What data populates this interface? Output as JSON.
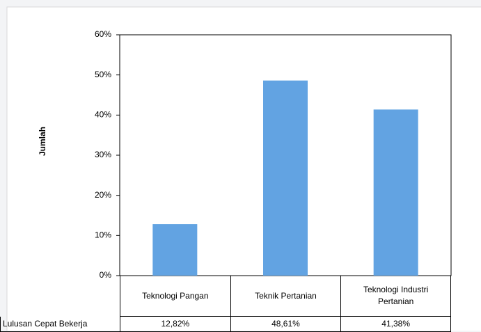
{
  "chart_data": {
    "type": "bar",
    "y_label": "Jumlah",
    "categories": [
      "Teknologi Pangan",
      "Teknik Pertanian",
      "Teknologi Industri Pertanian"
    ],
    "series": [
      {
        "name": "Lulusan Cepat Bekerja",
        "color": "#62a3e2",
        "values": [
          12.82,
          48.61,
          41.38
        ],
        "value_labels": [
          "12,82%",
          "48,61%",
          "41,38%"
        ]
      }
    ],
    "ylim": [
      0,
      60
    ],
    "yticks": [
      {
        "value": 0,
        "label": "0%"
      },
      {
        "value": 10,
        "label": "10%"
      },
      {
        "value": 20,
        "label": "20%"
      },
      {
        "value": 30,
        "label": "30%"
      },
      {
        "value": 40,
        "label": "40%"
      },
      {
        "value": 50,
        "label": "50%"
      },
      {
        "value": 60,
        "label": "60%"
      }
    ],
    "grid": false
  }
}
